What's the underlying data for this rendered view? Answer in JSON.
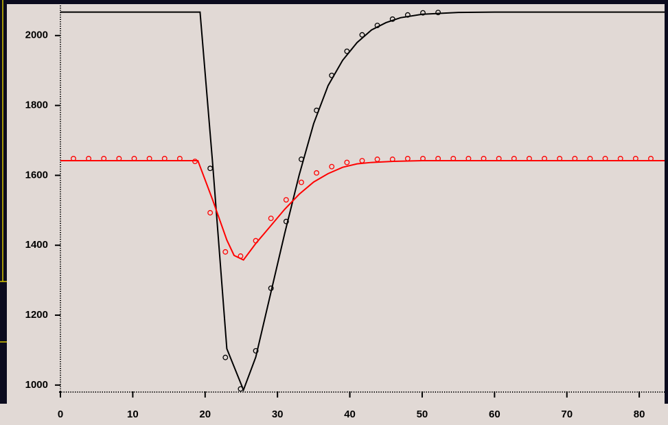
{
  "chart_data": {
    "type": "line",
    "xlim": [
      0,
      83.5
    ],
    "ylim": [
      982,
      2086
    ],
    "xticks": [
      0,
      10,
      20,
      30,
      40,
      50,
      60,
      70,
      80
    ],
    "yticks": [
      1000,
      1200,
      1400,
      1600,
      1800,
      2000
    ],
    "series": [
      {
        "color": "#000000",
        "style": "line",
        "x": [
          0,
          19.3,
          21,
          23,
          25.3,
          27,
          29,
          31,
          33,
          35,
          37,
          39,
          41,
          43,
          45,
          47,
          50,
          55,
          60,
          83.5
        ],
        "values": [
          2067,
          2067,
          1644,
          1104,
          986,
          1080,
          1257,
          1434,
          1601,
          1748,
          1857,
          1929,
          1980,
          2016,
          2037,
          2051,
          2061,
          2066,
          2067,
          2067
        ]
      },
      {
        "color": "#000000",
        "style": "markers",
        "x": [
          20.7,
          22.8,
          24.9,
          27.0,
          29.1,
          31.2,
          33.3,
          35.4,
          37.5,
          39.6,
          41.7,
          43.8,
          45.9,
          48.0,
          50.1,
          52.2
        ],
        "values": [
          1620,
          1079,
          989,
          1098,
          1277,
          1468,
          1646,
          1786,
          1886,
          1955,
          2002,
          2029,
          2047,
          2059,
          2065,
          2066
        ]
      },
      {
        "color": "#ff0000",
        "style": "line",
        "x": [
          0,
          19,
          21,
          23,
          24,
          25.3,
          27,
          29,
          31,
          33,
          35,
          37,
          39,
          41,
          43,
          46,
          50,
          83.5
        ],
        "values": [
          1642,
          1642,
          1532,
          1415,
          1371,
          1358,
          1405,
          1454,
          1503,
          1546,
          1581,
          1605,
          1623,
          1633,
          1637,
          1640,
          1642,
          1642
        ]
      },
      {
        "color": "#ff0000",
        "style": "markers",
        "x": [
          1.8,
          3.9,
          6.0,
          8.1,
          10.2,
          12.3,
          14.4,
          16.5,
          18.6,
          20.7,
          22.8,
          24.9,
          27.0,
          29.1,
          31.2,
          33.3,
          35.4,
          37.5,
          39.6,
          41.7,
          43.8,
          45.9,
          48.0,
          50.1,
          52.2,
          54.3,
          56.4,
          58.5,
          60.6,
          62.7,
          64.8,
          66.9,
          69.0,
          71.1,
          73.2,
          75.3,
          77.4,
          79.5,
          81.6
        ],
        "values": [
          1648,
          1648,
          1648,
          1648,
          1648,
          1648,
          1648,
          1648,
          1640,
          1493,
          1381,
          1369,
          1413,
          1477,
          1530,
          1580,
          1607,
          1625,
          1637,
          1642,
          1646,
          1646,
          1648,
          1648,
          1648,
          1648,
          1648,
          1648,
          1648,
          1648,
          1648,
          1648,
          1648,
          1648,
          1648,
          1648,
          1648,
          1648,
          1648
        ]
      }
    ]
  }
}
